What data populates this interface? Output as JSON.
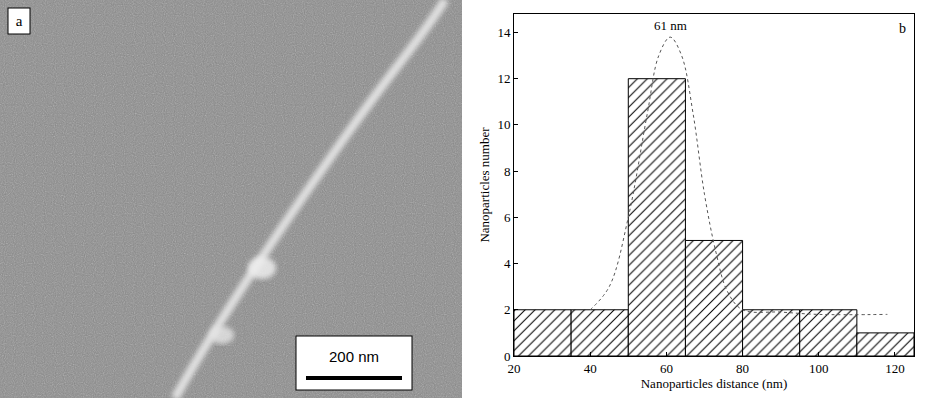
{
  "image_panel": {
    "label": "a",
    "scale_bar": "200 nm"
  },
  "chart_data": {
    "type": "histogram",
    "panel_label": "b",
    "x_label": "Nanoparticles distance (nm)",
    "y_label": "Nanoparticles number",
    "bins": [
      20,
      35,
      50,
      65,
      80,
      95,
      110,
      125
    ],
    "counts": [
      2,
      2,
      12,
      5,
      2,
      2,
      1
    ],
    "color": "#ffffff",
    "fit": {
      "line_style": "dotted",
      "color": "#555555",
      "x": [
        40,
        45,
        50,
        55,
        58,
        61,
        64,
        67,
        70,
        73,
        76,
        80,
        90,
        100,
        118
      ],
      "values": [
        2.0,
        3.0,
        6.0,
        10.5,
        13.0,
        13.8,
        13.0,
        10.5,
        7.0,
        4.5,
        2.8,
        2.0,
        1.9,
        1.8,
        1.8
      ]
    },
    "annotations": [
      {
        "text": "61 nm",
        "x": 61,
        "y": 14.3
      }
    ],
    "xlim": [
      20,
      125
    ],
    "xticks": [
      20,
      40,
      60,
      80,
      100,
      120
    ],
    "ylim": [
      0,
      14.8
    ],
    "yticks": [
      0,
      2,
      4,
      6,
      8,
      10,
      12,
      14
    ],
    "grid": false
  }
}
